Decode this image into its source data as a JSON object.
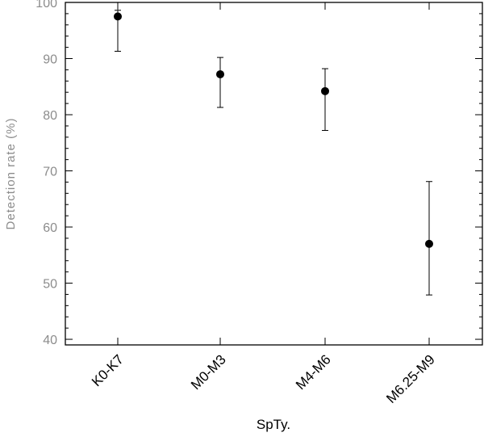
{
  "chart_data": {
    "type": "scatter",
    "title": "",
    "xlabel": "SpTy.",
    "ylabel": "Detection rate (%)",
    "ylim": [
      39,
      100
    ],
    "yticks": [
      40,
      50,
      60,
      70,
      80,
      90,
      100
    ],
    "grid": false,
    "categories": [
      "K0-K7",
      "M0-M3",
      "M4-M6",
      "M6.25-M9"
    ],
    "series": [
      {
        "values": [
          97.5,
          87.2,
          84.2,
          57.0
        ],
        "error_low": [
          91.3,
          81.3,
          77.2,
          47.9
        ],
        "error_high": [
          98.6,
          90.2,
          88.2,
          68.1
        ]
      }
    ]
  }
}
